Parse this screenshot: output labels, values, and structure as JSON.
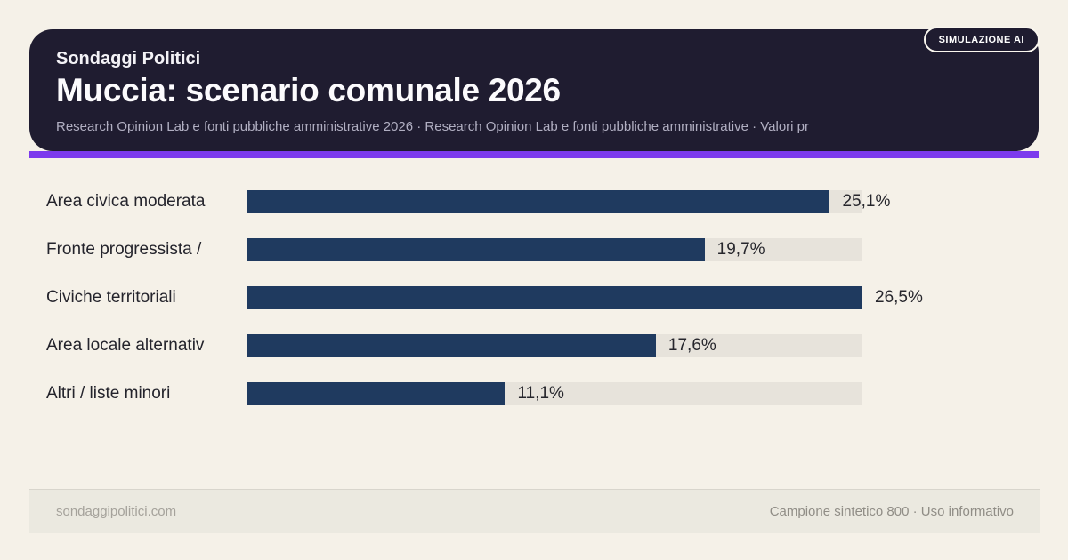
{
  "badge": {
    "label": "SIMULAZIONE AI"
  },
  "header": {
    "kicker": "Sondaggi Politici",
    "title": "Muccia: scenario comunale 2026",
    "subtitle": "Research Opinion Lab e fonti pubbliche amministrative 2026 · Research Opinion Lab e fonti pubbliche amministrative · Valori pr"
  },
  "footer": {
    "left": "sondaggipolitici.com",
    "right": "Campione sintetico 800 · Uso informativo"
  },
  "colors": {
    "page_background": "#f5f1e8",
    "header_background": "#1f1c30",
    "accent": "#7c3aed",
    "bar": "#1f3a5f",
    "bar_track": "#e7e3db",
    "footer_background": "#ebe9e0"
  },
  "chart_data": {
    "type": "bar",
    "orientation": "horizontal",
    "title": "Muccia: scenario comunale 2026",
    "categories": [
      "Area civica moderata",
      "Fronte progressista /",
      "Civiche territoriali",
      "Area locale alternativ",
      "Altri / liste minori"
    ],
    "values": [
      25.1,
      19.7,
      26.5,
      17.6,
      11.1
    ],
    "value_labels": [
      "25,1%",
      "19,7%",
      "26,5%",
      "17,6%",
      "11,1%"
    ],
    "xlabel": "",
    "ylabel": "",
    "xlim": [
      0,
      26.5
    ],
    "grid": false,
    "legend": false,
    "value_label_position": "outside-end"
  }
}
